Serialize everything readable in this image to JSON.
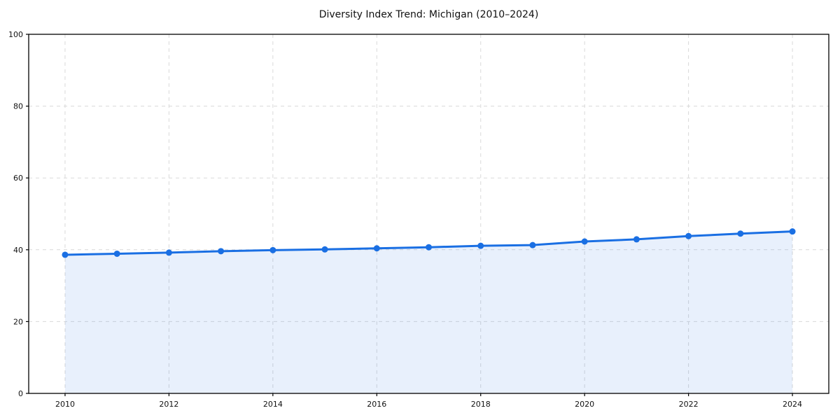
{
  "chart_data": {
    "type": "area",
    "title": "Diversity Index Trend: Michigan (2010–2024)",
    "xlabel": "",
    "ylabel": "",
    "x": [
      2010,
      2011,
      2012,
      2013,
      2014,
      2015,
      2016,
      2017,
      2018,
      2019,
      2020,
      2021,
      2022,
      2023,
      2024
    ],
    "series": [
      {
        "name": "Diversity Index",
        "values": [
          38.6,
          38.9,
          39.2,
          39.6,
          39.9,
          40.1,
          40.4,
          40.7,
          41.1,
          41.3,
          42.3,
          42.9,
          43.8,
          44.5,
          45.1
        ]
      }
    ],
    "xlim": [
      2009.3,
      2024.7
    ],
    "ylim": [
      0,
      100
    ],
    "xticks": [
      2010,
      2012,
      2014,
      2016,
      2018,
      2020,
      2022,
      2024
    ],
    "yticks": [
      0,
      20,
      40,
      60,
      80,
      100
    ],
    "grid": true,
    "legend_position": "none",
    "colors": {
      "line": "#1a6fe3",
      "marker": "#1a6fe3",
      "fill": "#1a6fe3",
      "fill_opacity": 0.1,
      "grid": "#d9d9d9",
      "frame": "#000000",
      "text": "#111111",
      "background": "#ffffff"
    }
  }
}
